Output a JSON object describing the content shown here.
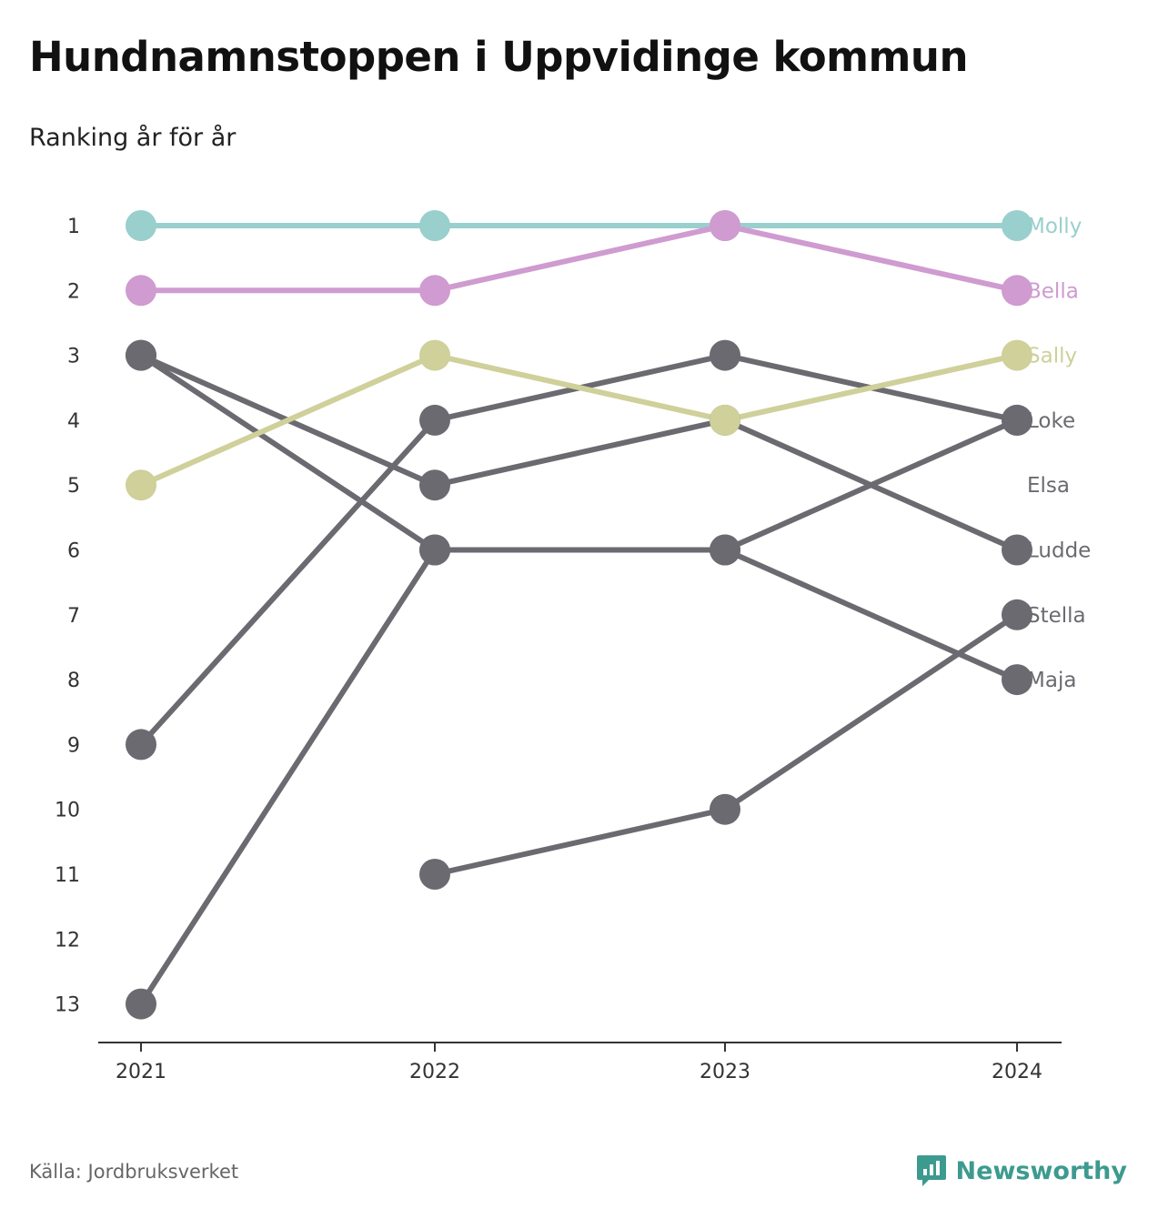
{
  "title": "Hundnamnstoppen i Uppvidinge kommun",
  "subtitle": "Ranking år för år",
  "source": "Källa: Jordbruksverket",
  "brand": "Newsworthy",
  "colors": {
    "Molly": "#99cfcd",
    "Bella": "#cf9bd0",
    "Sally": "#cfd09a",
    "default": "#6b6a70",
    "axis": "#333333",
    "brand": "#3d9a8f"
  },
  "chart_data": {
    "type": "line",
    "title": "Hundnamnstoppen i Uppvidinge kommun",
    "subtitle": "Ranking år för år",
    "x": [
      "2021",
      "2022",
      "2023",
      "2024"
    ],
    "y_ticks": [
      "1",
      "2",
      "3",
      "4",
      "5",
      "6",
      "7",
      "8",
      "9",
      "10",
      "11",
      "12",
      "13"
    ],
    "ylim": [
      1,
      13
    ],
    "y_inverted": true,
    "grid": false,
    "legend": "end-labels-right",
    "series": [
      {
        "name": "Molly",
        "values": [
          1,
          1,
          1,
          1
        ]
      },
      {
        "name": "Bella",
        "values": [
          2,
          2,
          1,
          2
        ]
      },
      {
        "name": "Sally",
        "values": [
          5,
          3,
          4,
          3
        ]
      },
      {
        "name": "Loke",
        "values": [
          9,
          4,
          3,
          4
        ]
      },
      {
        "name": "Elsa",
        "values": [
          3,
          5,
          4,
          6
        ]
      },
      {
        "name": "Ludde",
        "values": [
          null,
          11,
          10,
          7
        ]
      },
      {
        "name": "Stella",
        "values": [
          3,
          6,
          6,
          8
        ]
      },
      {
        "name": "Maja",
        "values": [
          13,
          6,
          6,
          4
        ]
      }
    ],
    "end_labels": [
      {
        "text": "Molly",
        "rank": 1,
        "color": "#99cfcd"
      },
      {
        "text": "Bella",
        "rank": 2,
        "color": "#cf9bd0"
      },
      {
        "text": "Sally",
        "rank": 3,
        "color": "#cfd09a"
      },
      {
        "text": "Loke",
        "rank": 4,
        "color": "#6b6a70"
      },
      {
        "text": "Elsa",
        "rank": 5,
        "color": "#6b6a70"
      },
      {
        "text": "Ludde",
        "rank": 6,
        "color": "#6b6a70"
      },
      {
        "text": "Stella",
        "rank": 7,
        "color": "#6b6a70"
      },
      {
        "text": "Maja",
        "rank": 8,
        "color": "#6b6a70"
      }
    ]
  }
}
